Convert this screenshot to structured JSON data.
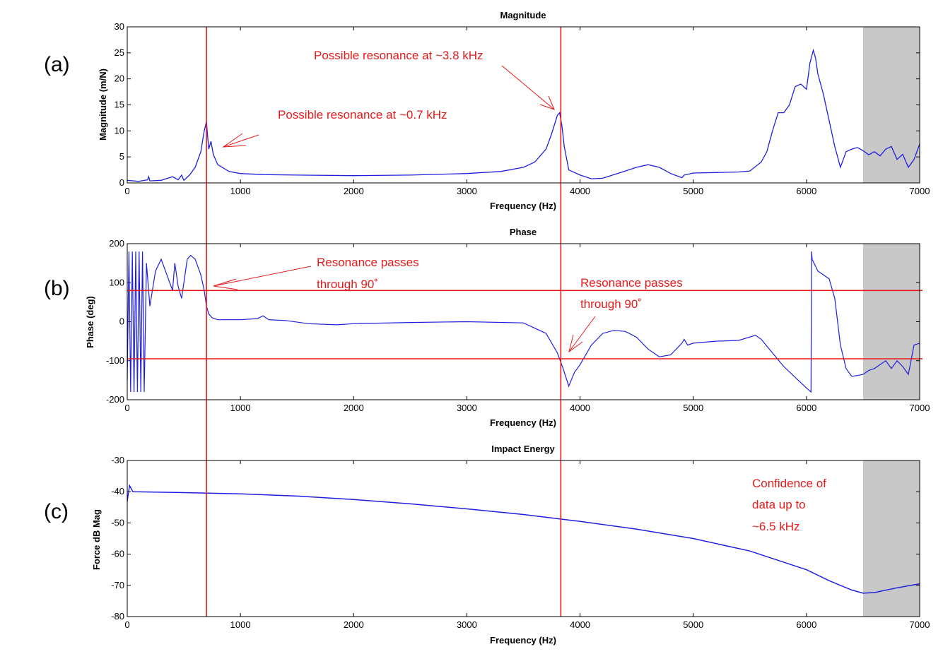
{
  "colors": {
    "series": "#1f1fe0",
    "annotation": "#e51b1b",
    "shade": "#c8c8c8",
    "axes": "#000000"
  },
  "chart_data": [
    {
      "type": "line",
      "panel_label": "(a)",
      "title": "Magnitude",
      "xlabel": "Frequency (Hz)",
      "ylabel": "Magnitude (m/N)",
      "xlim": [
        0,
        7000
      ],
      "ylim": [
        0,
        30
      ],
      "xticks": [
        0,
        1000,
        2000,
        3000,
        4000,
        5000,
        6000,
        7000
      ],
      "yticks": [
        0,
        5,
        10,
        15,
        20,
        25,
        30
      ],
      "grid": false,
      "series": [
        {
          "x": [
            0,
            100,
            180,
            190,
            200,
            300,
            400,
            450,
            480,
            500,
            550,
            600,
            650,
            680,
            700,
            710,
            720,
            740,
            760,
            800,
            900,
            1000,
            1200,
            1500,
            2000,
            2500,
            3000,
            3300,
            3500,
            3600,
            3700,
            3750,
            3800,
            3820,
            3840,
            3860,
            3900,
            4000,
            4100,
            4200,
            4300,
            4400,
            4500,
            4600,
            4700,
            4800,
            4900,
            4920,
            5000,
            5200,
            5400,
            5500,
            5600,
            5650,
            5700,
            5750,
            5800,
            5850,
            5900,
            5950,
            6000,
            6030,
            6060,
            6080,
            6100,
            6150,
            6200,
            6250,
            6300,
            6350,
            6400,
            6450,
            6500,
            6550,
            6600,
            6650,
            6700,
            6750,
            6800,
            6850,
            6900,
            6950,
            7000
          ],
          "y": [
            0.5,
            0.3,
            0.6,
            1.2,
            0.4,
            0.5,
            1.2,
            0.6,
            1.5,
            0.5,
            1.5,
            3,
            6,
            10,
            11.8,
            9,
            6.5,
            8,
            5.5,
            3.5,
            2.2,
            1.8,
            1.6,
            1.5,
            1.4,
            1.5,
            1.8,
            2.2,
            3,
            4,
            6.5,
            9.5,
            13,
            13.5,
            11,
            7,
            2.5,
            1.5,
            0.8,
            0.9,
            1.6,
            2.3,
            3,
            3.5,
            3,
            1.8,
            1.0,
            1.5,
            1.9,
            2.0,
            2.1,
            2.3,
            4,
            6,
            10,
            13.5,
            13.5,
            15,
            18.5,
            19,
            18,
            23,
            25.5,
            24,
            21,
            17,
            12,
            7,
            3,
            6,
            6.5,
            6.8,
            6.2,
            5.4,
            6,
            5.2,
            6.5,
            7,
            4.5,
            5.5,
            3.0,
            4.5,
            7.5
          ]
        }
      ],
      "annotations": [
        {
          "text": "Possible resonance at ~3.8 kHz"
        },
        {
          "text": "Possible resonance at ~0.7 kHz"
        }
      ],
      "vlines": [
        700,
        3830
      ],
      "shaded_region": [
        6500,
        7000
      ]
    },
    {
      "type": "line",
      "panel_label": "(b)",
      "title": "Phase",
      "xlabel": "Frequency (Hz)",
      "ylabel": "Phase (deg)",
      "xlim": [
        0,
        7000
      ],
      "ylim": [
        -200,
        200
      ],
      "xticks": [
        0,
        1000,
        2000,
        3000,
        4000,
        5000,
        6000,
        7000
      ],
      "yticks": [
        -200,
        -100,
        0,
        100,
        200
      ],
      "grid": false,
      "series": [
        {
          "x": [
            0,
            15,
            30,
            45,
            60,
            75,
            90,
            105,
            120,
            135,
            150,
            170,
            200,
            250,
            300,
            350,
            400,
            420,
            450,
            480,
            500,
            530,
            560,
            600,
            650,
            680,
            700,
            720,
            750,
            800,
            1000,
            1150,
            1200,
            1250,
            1400,
            1600,
            1850,
            2000,
            2500,
            3000,
            3500,
            3700,
            3800,
            3850,
            3900,
            3950,
            4000,
            4100,
            4200,
            4300,
            4400,
            4500,
            4600,
            4700,
            4800,
            4900,
            4920,
            4950,
            5000,
            5200,
            5400,
            5550,
            5600,
            5700,
            5800,
            6000,
            6040,
            6045,
            6050,
            6100,
            6200,
            6250,
            6300,
            6350,
            6400,
            6450,
            6500,
            6550,
            6600,
            6650,
            6700,
            6750,
            6800,
            6850,
            6900,
            6950,
            7000
          ],
          "y": [
            -150,
            180,
            -180,
            180,
            -180,
            180,
            -180,
            180,
            -180,
            180,
            -180,
            150,
            40,
            130,
            160,
            120,
            80,
            150,
            90,
            60,
            100,
            160,
            170,
            160,
            120,
            80,
            40,
            20,
            10,
            5,
            5,
            8,
            15,
            5,
            3,
            -5,
            -8,
            -5,
            -2,
            0,
            -3,
            -30,
            -80,
            -120,
            -165,
            -130,
            -110,
            -60,
            -30,
            -22,
            -25,
            -40,
            -70,
            -90,
            -85,
            -55,
            -45,
            -60,
            -55,
            -50,
            -48,
            -35,
            -45,
            -80,
            -115,
            -170,
            -180,
            180,
            160,
            130,
            110,
            60,
            -60,
            -120,
            -140,
            -138,
            -135,
            -125,
            -120,
            -110,
            -100,
            -120,
            -100,
            -115,
            -135,
            -60,
            -55
          ]
        }
      ],
      "annotations": [
        {
          "text_lines": [
            "Resonance passes",
            "through 90˚"
          ]
        },
        {
          "text_lines": [
            "Resonance passes",
            "through 90˚"
          ]
        }
      ],
      "hlines": [
        80,
        -95
      ],
      "vlines": [
        700,
        3830
      ],
      "shaded_region": [
        6500,
        7000
      ]
    },
    {
      "type": "line",
      "panel_label": "(c)",
      "title": "Impact Energy",
      "xlabel": "Frequency (Hz)",
      "ylabel": "Force dB Mag",
      "xlim": [
        0,
        7000
      ],
      "ylim": [
        -80,
        -30
      ],
      "xticks": [
        0,
        1000,
        2000,
        3000,
        4000,
        5000,
        6000,
        7000
      ],
      "yticks": [
        -80,
        -70,
        -60,
        -50,
        -40,
        -30
      ],
      "grid": false,
      "series": [
        {
          "x": [
            0,
            20,
            50,
            200,
            500,
            1000,
            1500,
            2000,
            2500,
            3000,
            3500,
            4000,
            4500,
            5000,
            5500,
            6000,
            6200,
            6400,
            6500,
            6600,
            6800,
            7000
          ],
          "y": [
            -43,
            -38,
            -40,
            -40.1,
            -40.3,
            -40.7,
            -41.4,
            -42.5,
            -43.9,
            -45.5,
            -47.3,
            -49.5,
            -52,
            -55,
            -59,
            -65,
            -68.5,
            -71.5,
            -72.5,
            -72.3,
            -70.8,
            -69.5
          ]
        }
      ],
      "annotations": [
        {
          "text_lines": [
            "Confidence of",
            "data up to",
            "~6.5 kHz"
          ]
        }
      ],
      "vlines": [
        700,
        3830
      ],
      "shaded_region": [
        6500,
        7000
      ]
    }
  ]
}
